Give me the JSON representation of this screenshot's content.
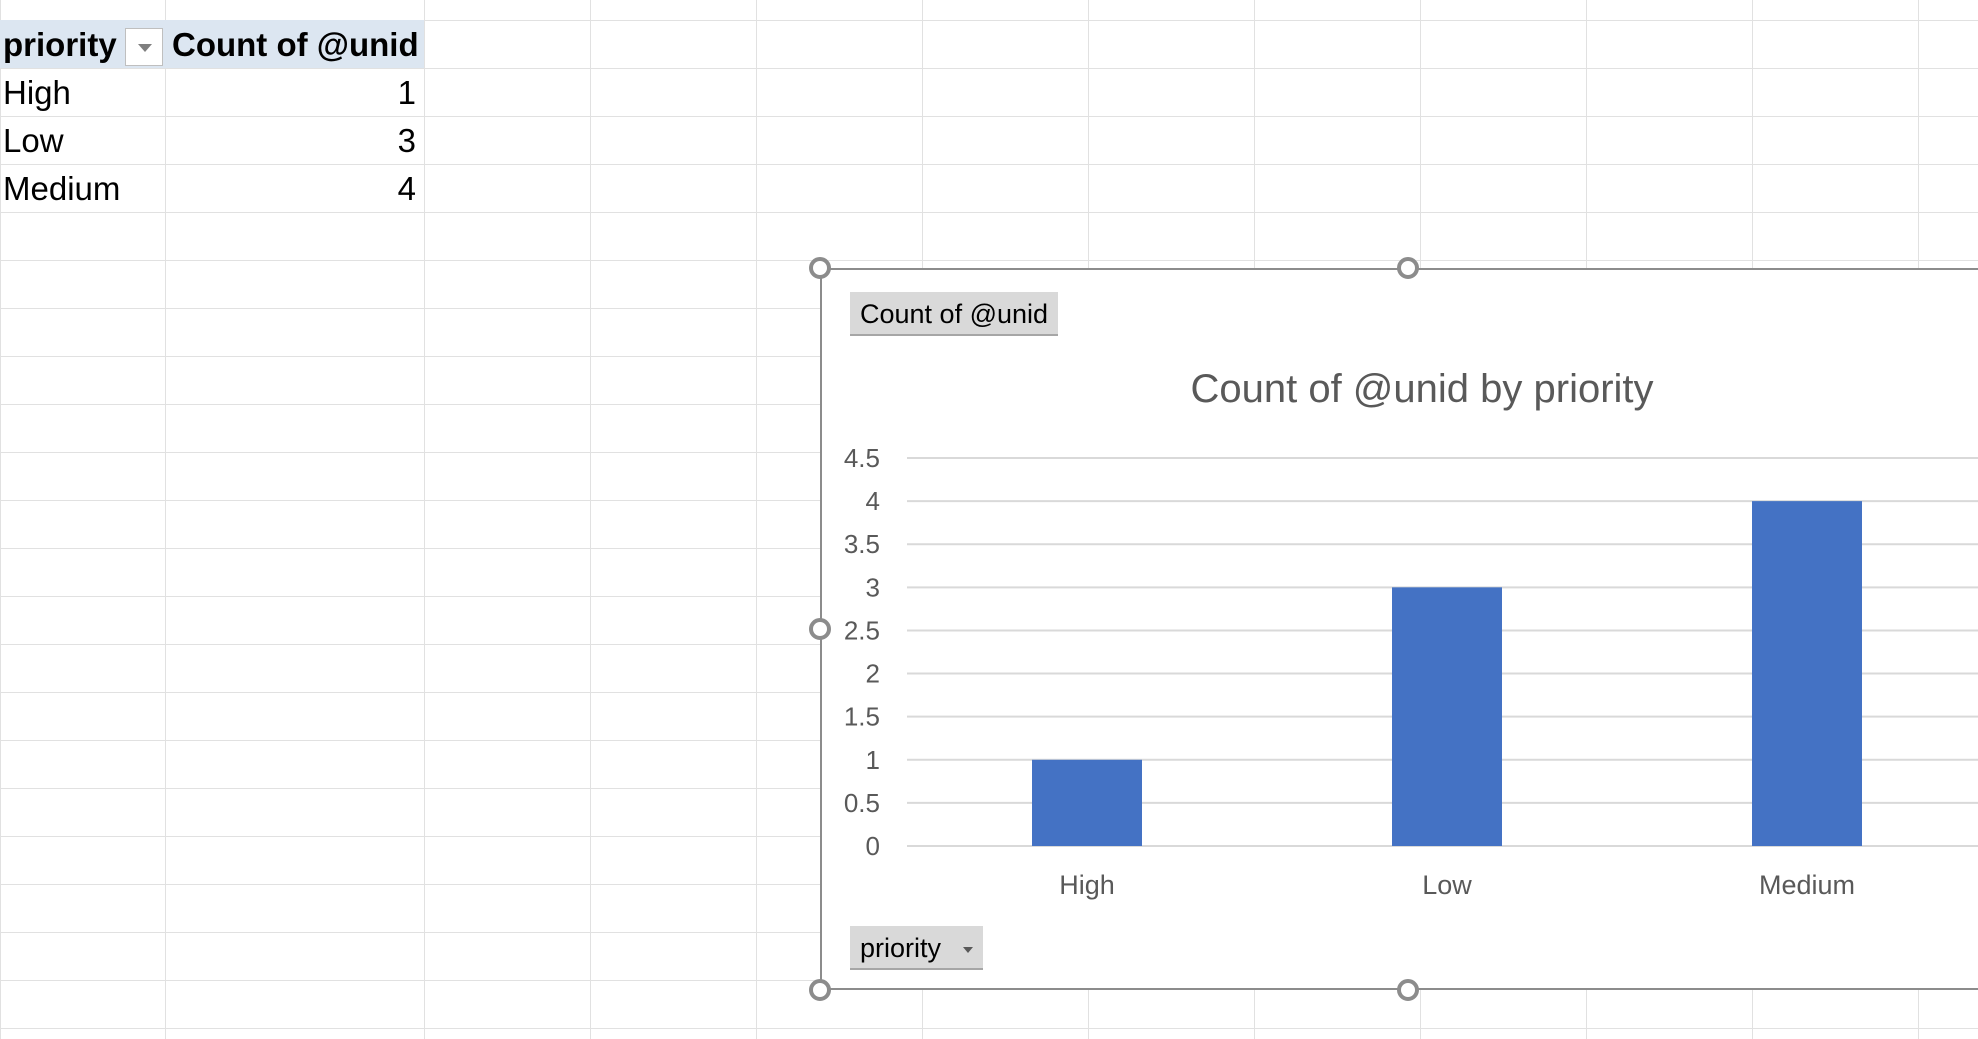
{
  "pivot": {
    "headers": {
      "field": "priority",
      "value": "Count of @unid"
    },
    "rows": [
      {
        "label": "High",
        "value": "1"
      },
      {
        "label": "Low",
        "value": "3"
      },
      {
        "label": "Medium",
        "value": "4"
      }
    ]
  },
  "chart": {
    "value_field_button": "Count of @unid",
    "axis_field_button": "priority",
    "bar_color": "#4472c4"
  },
  "chart_data": {
    "type": "bar",
    "title": "Count of @unid by priority",
    "categories": [
      "High",
      "Low",
      "Medium"
    ],
    "values": [
      1,
      3,
      4
    ],
    "ylim": [
      0,
      4.5
    ],
    "yticks": [
      "0",
      "0.5",
      "1",
      "1.5",
      "2",
      "2.5",
      "3",
      "3.5",
      "4",
      "4.5"
    ],
    "grid": true,
    "legend": "none"
  }
}
